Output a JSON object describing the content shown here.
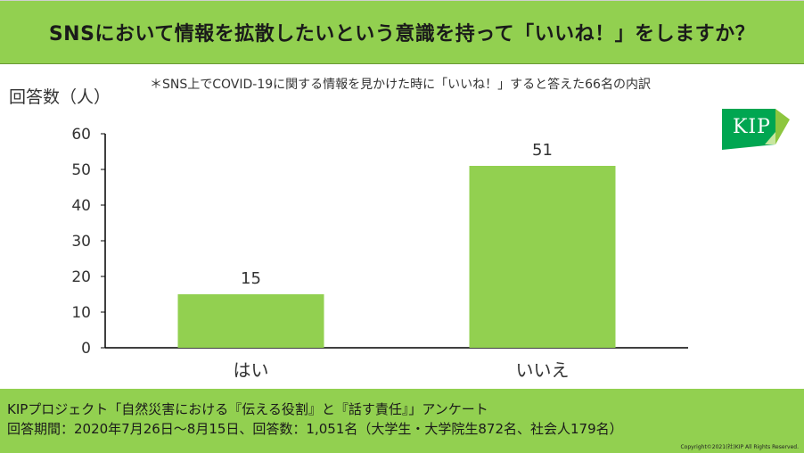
{
  "header": {
    "title": "SNSにおいて情報を拡散したいという意識を持って「いいね！」をしますか？"
  },
  "note": "＊SNS上でCOVID-19に関する情報を見かけた時に「いいね！」すると答えた66名の内訳",
  "logo": {
    "text": "KIP",
    "color": "#00a651"
  },
  "footer": {
    "line1": "KIPプロジェクト「自然災害における『伝える役割』と『話す責任』」アンケート",
    "line2": "回答期間：2020年7月26日〜8月15日、回答数：1,051名（大学生・大学院生872名、社会人179名）",
    "copyright": "Copyright©2021(社)KIP  All Rights Reserved."
  },
  "colors": {
    "accent": "#92d050",
    "bar": "#92d050"
  },
  "chart_data": {
    "type": "bar",
    "categories": [
      "はい",
      "いいえ"
    ],
    "values": [
      15,
      51
    ],
    "ylabel": "回答数（人）",
    "ylim": [
      0,
      60
    ],
    "yticks": [
      0,
      10,
      20,
      30,
      40,
      50,
      60
    ],
    "data_labels": true,
    "grid": false
  }
}
